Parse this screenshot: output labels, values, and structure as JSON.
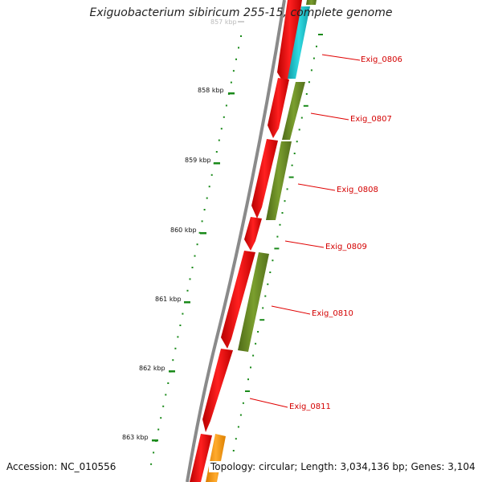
{
  "title": "Exiguobacterium sibiricum 255-15, complete genome",
  "footer": {
    "accession": "Accession: NC_010556",
    "summary": "Topology: circular; Length: 3,034,136 bp; Genes: 3,104"
  },
  "ticks": [
    {
      "label": "858 kbp"
    },
    {
      "label": "859 kbp"
    },
    {
      "label": "860 kbp"
    },
    {
      "label": "861 kbp"
    },
    {
      "label": "862 kbp"
    },
    {
      "label": "863 kbp"
    }
  ],
  "genes": [
    {
      "label": "Exig_0806"
    },
    {
      "label": "Exig_0807"
    },
    {
      "label": "Exig_0808"
    },
    {
      "label": "Exig_0809"
    },
    {
      "label": "Exig_0810"
    },
    {
      "label": "Exig_0811"
    }
  ],
  "colors": {
    "cds": "#ff0000",
    "cog_green": "#6b8e23",
    "cog_cyan": "#1ec8d0",
    "cog_orange": "#ff9900",
    "backbone": "#888888",
    "ticks": "#1a8a1a",
    "gene_label": "#d40000"
  }
}
